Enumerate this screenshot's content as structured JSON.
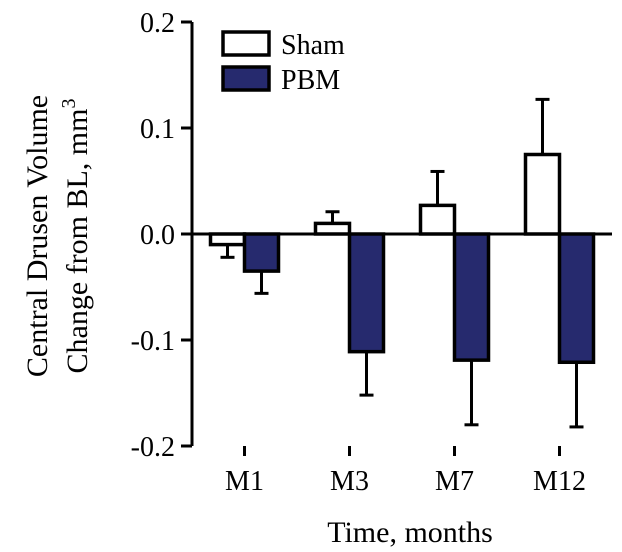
{
  "chart_data": {
    "type": "bar",
    "categories": [
      "M1",
      "M3",
      "M7",
      "M12"
    ],
    "series": [
      {
        "name": "Sham",
        "values": [
          -0.01,
          0.01,
          0.027,
          0.075
        ],
        "errors": [
          0.012,
          0.011,
          0.032,
          0.052
        ],
        "color": "#ffffff"
      },
      {
        "name": "PBM",
        "values": [
          -0.035,
          -0.111,
          -0.119,
          -0.121
        ],
        "errors": [
          0.021,
          0.041,
          0.061,
          0.061
        ],
        "color": "#262a6e"
      }
    ],
    "ylabel_line1": "Central Drusen Volume",
    "ylabel_line2": "Change from BL, mm",
    "ylabel_sup": "3",
    "xlabel": "Time, months",
    "ylim": [
      -0.2,
      0.2
    ],
    "yticks": [
      0.2,
      0.1,
      0.0,
      -0.1,
      -0.2
    ],
    "ytick_labels": [
      "0.2",
      "0.1",
      "0.0",
      "-0.1",
      "-0.2"
    ],
    "legend_position": "top-left",
    "grid": false
  }
}
